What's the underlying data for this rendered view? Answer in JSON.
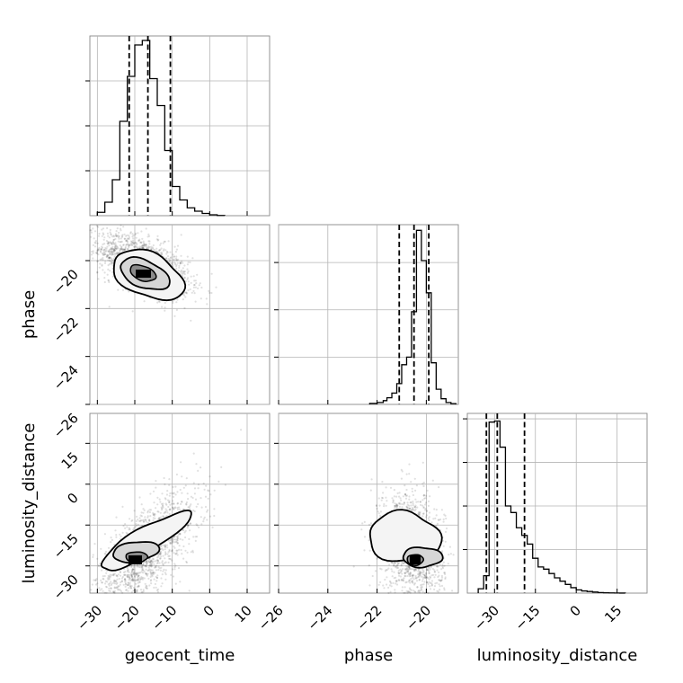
{
  "chart_data": {
    "type": "corner",
    "parameters": [
      "geocent_time",
      "phase",
      "luminosity_distance"
    ],
    "axis_labels": {
      "geocent_time": "geocent_time",
      "phase": "phase",
      "luminosity_distance": "luminosity_distance"
    },
    "ranges": {
      "geocent_time": [
        -32,
        16
      ],
      "phase": [
        -26,
        -18.7
      ],
      "luminosity_distance": [
        -40,
        26
      ]
    },
    "ticks": {
      "geocent_time": [
        -30,
        -20,
        -10,
        0,
        10
      ],
      "phase_x": [
        -26,
        -24,
        -22,
        -20
      ],
      "phase_y": [
        -20,
        -22,
        -24,
        -26
      ],
      "luminosity_distance": [
        -30,
        -15,
        0,
        15
      ]
    },
    "grid": true,
    "quantile_lines": {
      "geocent_time": [
        -21.5,
        -16.5,
        -10.5
      ],
      "phase": [
        -21.1,
        -20.5,
        -19.9
      ],
      "luminosity_distance": [
        -33,
        -29,
        -19
      ]
    },
    "histograms": {
      "geocent_time": {
        "bin_edges": [
          -30,
          -28,
          -26,
          -24,
          -22,
          -20,
          -18,
          -16,
          -14,
          -12,
          -10,
          -8,
          -6,
          -4,
          -2,
          0,
          2,
          4
        ],
        "counts": [
          1.5,
          6,
          16,
          42,
          62,
          76,
          78,
          61,
          49,
          29,
          13,
          7,
          3.5,
          2,
          1,
          0.4,
          0.1
        ]
      },
      "phase": {
        "bin_edges": [
          -22.3,
          -22.0,
          -21.75,
          -21.6,
          -21.4,
          -21.2,
          -21.0,
          -20.8,
          -20.6,
          -20.4,
          -20.2,
          -20.0,
          -19.8,
          -19.6,
          -19.4,
          -19.2,
          -19.0,
          -18.8
        ],
        "counts": [
          0.5,
          1,
          2,
          3.5,
          6,
          11,
          21,
          25,
          49,
          92,
          76,
          59,
          22,
          8,
          3,
          1,
          0.4
        ]
      },
      "luminosity_distance": {
        "bin_edges": [
          -36,
          -34,
          -32,
          -30,
          -28,
          -26,
          -24,
          -22,
          -20,
          -18,
          -16,
          -14,
          -12,
          -10,
          -8,
          -6,
          -4,
          -2,
          0,
          2,
          4,
          6,
          8,
          10,
          12,
          14,
          16,
          18
        ],
        "counts": [
          4,
          16,
          157,
          158,
          134,
          80,
          74,
          60,
          53,
          45,
          32,
          24,
          22,
          18,
          14,
          11,
          8,
          5,
          3,
          2,
          1.5,
          1,
          0.5,
          0.3,
          0.2,
          0.1,
          0.05
        ]
      }
    },
    "scatter_2d": {
      "geocent_time_vs_phase": {
        "mean": [
          -17.5,
          -20.2
        ],
        "spread": [
          6,
          0.65
        ],
        "correlation": -0.55,
        "contour_sigma": [
          0.6,
          1.2,
          2.0
        ],
        "mode": [
          -19,
          -20.15
        ]
      },
      "geocent_time_vs_luminosity_distance": {
        "mean": [
          -17,
          -25
        ],
        "spread": [
          7,
          11
        ],
        "correlation": 0.7,
        "mode": [
          -20,
          -30.5
        ]
      },
      "phase_vs_luminosity_distance": {
        "mean": [
          -20.6,
          -23
        ],
        "spread": [
          0.65,
          10
        ],
        "correlation": -0.2,
        "mode": [
          -20.1,
          -31
        ]
      }
    }
  }
}
